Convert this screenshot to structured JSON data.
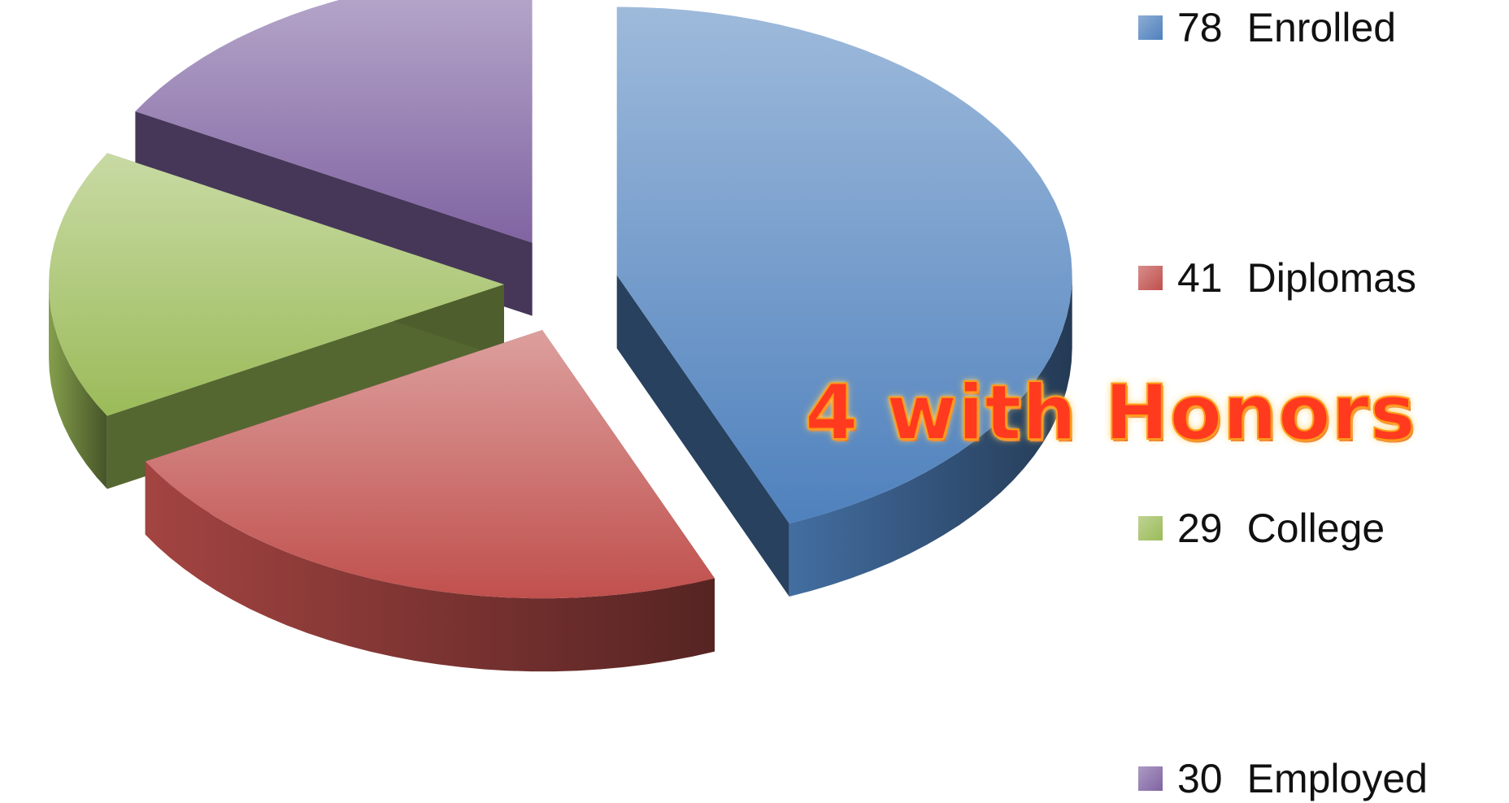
{
  "chart_data": {
    "type": "pie",
    "title": "",
    "series": [
      {
        "name": "Enrolled",
        "value": 78,
        "color": "#4f81bd"
      },
      {
        "name": "Diplomas",
        "value": 41,
        "color": "#c0504d"
      },
      {
        "name": "College",
        "value": 29,
        "color": "#9bbb59"
      },
      {
        "name": "Employed",
        "value": 30,
        "color": "#8064a2"
      }
    ],
    "legend": {
      "placement": "right",
      "items": [
        {
          "value": "78",
          "label": "Enrolled",
          "color": "#4f81bd"
        },
        {
          "value": "41",
          "label": "Diplomas",
          "color": "#c0504d"
        },
        {
          "value": "29",
          "label": "College",
          "color": "#9bbb59"
        },
        {
          "value": "30",
          "label": "Employed",
          "color": "#8064a2"
        }
      ]
    },
    "annotations": [
      {
        "text": "4 with Honors",
        "color": "#ff3a1f"
      }
    ],
    "style": "3d-exploded-pie"
  }
}
